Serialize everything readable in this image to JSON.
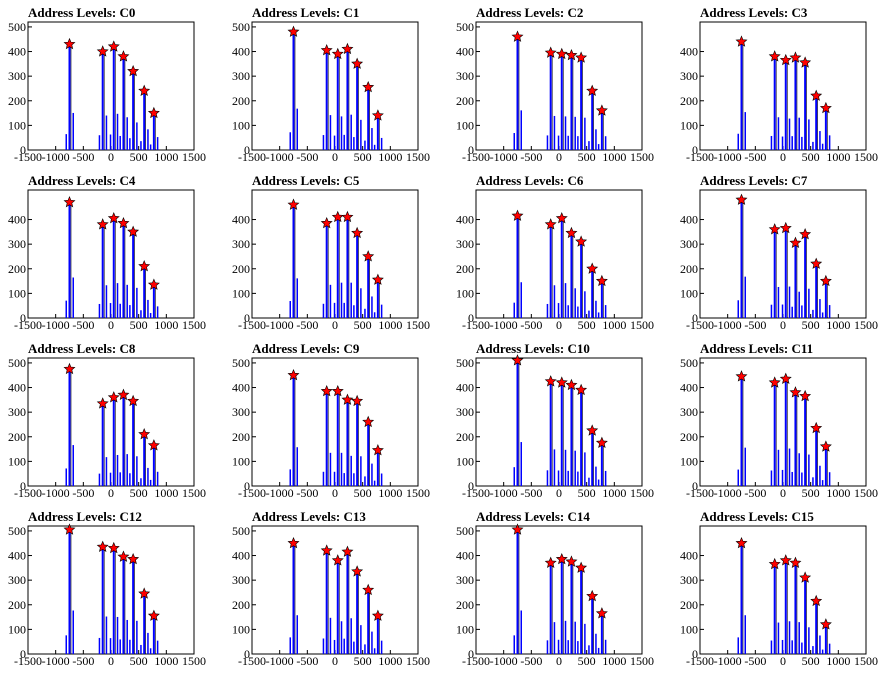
{
  "chart_data": {
    "type": "bar",
    "layout": "4x4 grid of histograms with red star peak markers",
    "colors": {
      "bars": "#0000ff",
      "stars": "#ff0000",
      "frame": "#000000"
    },
    "xlim": [
      -1500,
      1500
    ],
    "ylim": [
      0,
      520
    ],
    "x_ticks": [
      "-1500",
      "-1000",
      "-500",
      "0",
      "500",
      "1000",
      "1500"
    ],
    "x_tick_values": [
      -1500,
      -1000,
      -500,
      0,
      500,
      1000,
      1500
    ],
    "peak_x": [
      -750,
      -150,
      50,
      225,
      400,
      600,
      775
    ],
    "panels": [
      {
        "title": "Address Levels: C0",
        "y_ticks": [
          "0",
          "100",
          "200",
          "300",
          "400",
          "500"
        ],
        "y_tick_values": [
          0,
          100,
          200,
          300,
          400,
          500
        ],
        "peaks": [
          430,
          400,
          420,
          380,
          320,
          240,
          150
        ]
      },
      {
        "title": "Address Levels: C1",
        "y_ticks": [
          "0",
          "100",
          "200",
          "300",
          "400",
          "500"
        ],
        "y_tick_values": [
          0,
          100,
          200,
          300,
          400,
          500
        ],
        "peaks": [
          480,
          405,
          390,
          410,
          350,
          255,
          140
        ]
      },
      {
        "title": "Address Levels: C2",
        "y_ticks": [
          "0",
          "100",
          "200",
          "300",
          "400",
          "500"
        ],
        "y_tick_values": [
          0,
          100,
          200,
          300,
          400,
          500
        ],
        "peaks": [
          460,
          395,
          390,
          385,
          375,
          240,
          160
        ]
      },
      {
        "title": "Address Levels: C3",
        "y_ticks": [
          "0",
          "100",
          "200",
          "300",
          "400"
        ],
        "y_tick_values": [
          0,
          100,
          200,
          300,
          400
        ],
        "peaks": [
          440,
          380,
          365,
          375,
          355,
          220,
          170
        ]
      },
      {
        "title": "Address Levels: C4",
        "y_ticks": [
          "0",
          "100",
          "200",
          "300",
          "400"
        ],
        "y_tick_values": [
          0,
          100,
          200,
          300,
          400
        ],
        "peaks": [
          470,
          380,
          405,
          385,
          350,
          210,
          135
        ]
      },
      {
        "title": "Address Levels: C5",
        "y_ticks": [
          "0",
          "100",
          "200",
          "300",
          "400"
        ],
        "y_tick_values": [
          0,
          100,
          200,
          300,
          400
        ],
        "peaks": [
          460,
          385,
          410,
          410,
          345,
          250,
          155
        ]
      },
      {
        "title": "Address Levels: C6",
        "y_ticks": [
          "0",
          "100",
          "200",
          "300",
          "400"
        ],
        "y_tick_values": [
          0,
          100,
          200,
          300,
          400
        ],
        "peaks": [
          415,
          380,
          405,
          345,
          310,
          200,
          150
        ]
      },
      {
        "title": "Address Levels: C7",
        "y_ticks": [
          "0",
          "100",
          "200",
          "300",
          "400"
        ],
        "y_tick_values": [
          0,
          100,
          200,
          300,
          400
        ],
        "peaks": [
          480,
          360,
          365,
          305,
          340,
          220,
          150
        ]
      },
      {
        "title": "Address Levels: C8",
        "y_ticks": [
          "0",
          "100",
          "200",
          "300",
          "400",
          "500"
        ],
        "y_tick_values": [
          0,
          100,
          200,
          300,
          400,
          500
        ],
        "peaks": [
          475,
          335,
          360,
          370,
          345,
          210,
          165
        ]
      },
      {
        "title": "Address Levels: C9",
        "y_ticks": [
          "0",
          "100",
          "200",
          "300",
          "400",
          "500"
        ],
        "y_tick_values": [
          0,
          100,
          200,
          300,
          400,
          500
        ],
        "peaks": [
          450,
          385,
          385,
          350,
          345,
          260,
          145
        ]
      },
      {
        "title": "Address Levels: C10",
        "y_ticks": [
          "0",
          "100",
          "200",
          "300",
          "400",
          "500"
        ],
        "y_tick_values": [
          0,
          100,
          200,
          300,
          400,
          500
        ],
        "peaks": [
          510,
          425,
          420,
          410,
          390,
          225,
          175
        ]
      },
      {
        "title": "Address Levels: C11",
        "y_ticks": [
          "0",
          "100",
          "200",
          "300",
          "400",
          "500"
        ],
        "y_tick_values": [
          0,
          100,
          200,
          300,
          400,
          500
        ],
        "peaks": [
          445,
          420,
          435,
          380,
          365,
          235,
          160
        ]
      },
      {
        "title": "Address Levels: C12",
        "y_ticks": [
          "0",
          "100",
          "200",
          "300",
          "400",
          "500"
        ],
        "y_tick_values": [
          0,
          100,
          200,
          300,
          400,
          500
        ],
        "peaks": [
          505,
          435,
          430,
          395,
          385,
          245,
          155
        ]
      },
      {
        "title": "Address Levels: C13",
        "y_ticks": [
          "0",
          "100",
          "200",
          "300",
          "400",
          "500"
        ],
        "y_tick_values": [
          0,
          100,
          200,
          300,
          400,
          500
        ],
        "peaks": [
          450,
          420,
          380,
          415,
          335,
          260,
          155
        ]
      },
      {
        "title": "Address Levels: C14",
        "y_ticks": [
          "0",
          "100",
          "200",
          "300",
          "400",
          "500"
        ],
        "y_tick_values": [
          0,
          100,
          200,
          300,
          400,
          500
        ],
        "peaks": [
          505,
          370,
          385,
          375,
          350,
          235,
          165
        ]
      },
      {
        "title": "Address Levels: C15",
        "y_ticks": [
          "0",
          "100",
          "200",
          "300",
          "400"
        ],
        "y_tick_values": [
          0,
          100,
          200,
          300,
          400
        ],
        "peaks": [
          450,
          365,
          380,
          370,
          310,
          215,
          120
        ]
      }
    ]
  }
}
